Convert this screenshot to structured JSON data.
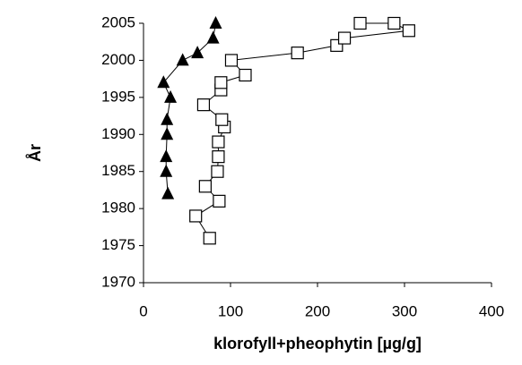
{
  "chart_data": {
    "type": "scatter",
    "xlabel": "klorofyll+pheophytin [µg/g]",
    "ylabel": "År",
    "xlim": [
      0,
      400
    ],
    "xticks": [
      0,
      100,
      200,
      300,
      400
    ],
    "ylim": [
      1970,
      2005
    ],
    "yticks": [
      1970,
      1975,
      1980,
      1985,
      1990,
      1995,
      2000,
      2005
    ],
    "series": [
      {
        "color": "#000000",
        "marker": "triangle",
        "line": true,
        "x": [
          28,
          26,
          26,
          27,
          27,
          31,
          23,
          45,
          62,
          80,
          83
        ],
        "values": [
          1982,
          1985,
          1987,
          1990,
          1992,
          1995,
          1997,
          2000,
          2001,
          2003,
          2005
        ]
      },
      {
        "color": "#000000",
        "marker": "square",
        "line": true,
        "x": [
          76,
          60,
          87,
          71,
          85,
          86,
          86,
          93,
          90,
          69,
          89,
          89,
          117,
          101,
          177,
          222,
          231,
          305,
          288,
          249
        ],
        "values": [
          1976,
          1979,
          1981,
          1983,
          1985,
          1987,
          1989,
          1991,
          1992,
          1994,
          1996,
          1997,
          1998,
          2000,
          2001,
          2002,
          2003,
          2004,
          2005,
          2005
        ]
      }
    ]
  }
}
